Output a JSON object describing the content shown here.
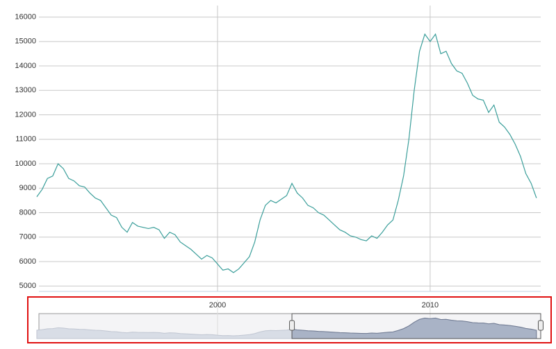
{
  "chart_data": {
    "type": "line",
    "color": "#3a9e9a",
    "grid": true,
    "xlim": [
      1991.6,
      2015.2
    ],
    "xticks": [
      2000,
      2010
    ],
    "ylim": [
      4780,
      16300
    ],
    "yticks": [
      5000,
      6000,
      7000,
      8000,
      9000,
      10000,
      11000,
      12000,
      13000,
      14000,
      15000,
      16000
    ],
    "navigator_selection": [
      2003.5,
      2015.2
    ],
    "x": [
      1991.5,
      1991.75,
      1992,
      1992.25,
      1992.5,
      1992.75,
      1993,
      1993.25,
      1993.5,
      1993.75,
      1994,
      1994.25,
      1994.5,
      1994.75,
      1995,
      1995.25,
      1995.5,
      1995.75,
      1996,
      1996.25,
      1996.5,
      1996.75,
      1997,
      1997.25,
      1997.5,
      1997.75,
      1998,
      1998.25,
      1998.5,
      1998.75,
      1999,
      1999.25,
      1999.5,
      1999.75,
      2000,
      2000.25,
      2000.5,
      2000.75,
      2001,
      2001.25,
      2001.5,
      2001.75,
      2002,
      2002.25,
      2002.5,
      2002.75,
      2003,
      2003.25,
      2003.5,
      2003.75,
      2004,
      2004.25,
      2004.5,
      2004.75,
      2005,
      2005.25,
      2005.5,
      2005.75,
      2006,
      2006.25,
      2006.5,
      2006.75,
      2007,
      2007.25,
      2007.5,
      2007.75,
      2008,
      2008.25,
      2008.5,
      2008.75,
      2009,
      2009.25,
      2009.5,
      2009.75,
      2010,
      2010.25,
      2010.5,
      2010.75,
      2011,
      2011.25,
      2011.5,
      2011.75,
      2012,
      2012.25,
      2012.5,
      2012.75,
      2013,
      2013.25,
      2013.5,
      2013.75,
      2014,
      2014.25,
      2014.5,
      2014.75,
      2015
    ],
    "values": [
      8650,
      8950,
      9400,
      9500,
      10000,
      9800,
      9400,
      9300,
      9100,
      9050,
      8800,
      8600,
      8500,
      8200,
      7900,
      7800,
      7400,
      7200,
      7600,
      7450,
      7400,
      7350,
      7400,
      7300,
      6950,
      7200,
      7100,
      6800,
      6650,
      6500,
      6300,
      6100,
      6250,
      6150,
      5900,
      5650,
      5700,
      5550,
      5700,
      5950,
      6200,
      6800,
      7700,
      8300,
      8500,
      8400,
      8550,
      8700,
      9200,
      8800,
      8600,
      8300,
      8200,
      8000,
      7900,
      7700,
      7500,
      7300,
      7200,
      7050,
      7000,
      6900,
      6850,
      7050,
      6950,
      7200,
      7500,
      7700,
      8500,
      9500,
      11000,
      13000,
      14600,
      15300,
      15000,
      15300,
      14500,
      14600,
      14100,
      13800,
      13700,
      13300,
      12800,
      12650,
      12600,
      12100,
      12400,
      11700,
      11500,
      11200,
      10800,
      10300,
      9600,
      9200,
      8600
    ]
  }
}
